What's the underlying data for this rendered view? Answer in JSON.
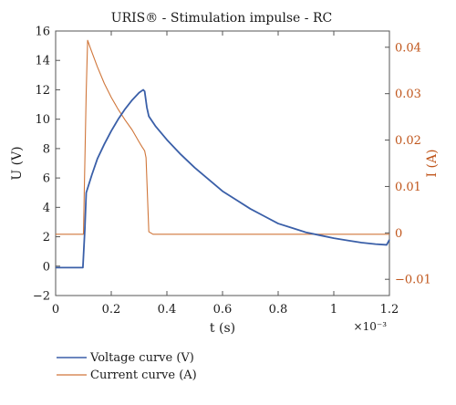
{
  "chart_data": {
    "type": "line",
    "title": "URIS® - Stimulation impulse - RC",
    "xlabel": "t (s)",
    "ylabel": "U (V)",
    "y2label": "I (A)",
    "x_multiplier": "×10⁻³",
    "xlim": [
      0,
      1.2
    ],
    "ylim": [
      -2,
      16
    ],
    "y2lim": [
      -0.0135,
      0.0435
    ],
    "x_ticks": [
      "0",
      "0.2",
      "0.4",
      "0.6",
      "0.8",
      "1",
      "1.2"
    ],
    "y_ticks": [
      "−2",
      "0",
      "2",
      "4",
      "6",
      "8",
      "10",
      "12",
      "14",
      "16"
    ],
    "y2_ticks": [
      "−0.01",
      "0",
      "0.01",
      "0.02",
      "0.03",
      "0.04"
    ],
    "grid": false,
    "legend_position": "bottom-left",
    "series": [
      {
        "name": "Voltage curve (V)",
        "axis": "left",
        "color": "#3a5fa8",
        "x": [
          0,
          0.05,
          0.098,
          0.105,
          0.11,
          0.13,
          0.15,
          0.175,
          0.2,
          0.225,
          0.25,
          0.275,
          0.3,
          0.315,
          0.32,
          0.328,
          0.335,
          0.36,
          0.4,
          0.45,
          0.5,
          0.55,
          0.6,
          0.65,
          0.7,
          0.75,
          0.8,
          0.85,
          0.9,
          0.95,
          1.0,
          1.05,
          1.1,
          1.15,
          1.19,
          1.2
        ],
        "values": [
          -0.1,
          -0.1,
          -0.1,
          2.5,
          5.0,
          6.2,
          7.3,
          8.3,
          9.2,
          10.0,
          10.7,
          11.3,
          11.8,
          12.0,
          11.9,
          10.8,
          10.2,
          9.5,
          8.6,
          7.6,
          6.7,
          5.9,
          5.1,
          4.5,
          3.9,
          3.4,
          2.9,
          2.6,
          2.3,
          2.1,
          1.9,
          1.75,
          1.6,
          1.5,
          1.45,
          1.8
        ]
      },
      {
        "name": "Current curve (A)",
        "axis": "right",
        "color": "#d0763a",
        "x": [
          0,
          0.1,
          0.11,
          0.115,
          0.125,
          0.15,
          0.175,
          0.2,
          0.225,
          0.25,
          0.275,
          0.3,
          0.31,
          0.32,
          0.325,
          0.335,
          0.35,
          0.6,
          0.9,
          1.2
        ],
        "values": [
          -0.0003,
          -0.0003,
          0.0305,
          0.0415,
          0.0398,
          0.0358,
          0.0322,
          0.0292,
          0.0266,
          0.0243,
          0.0222,
          0.0196,
          0.0186,
          0.0177,
          0.0162,
          0.00025,
          -0.0003,
          -0.0003,
          -0.0003,
          -0.0003
        ]
      }
    ]
  }
}
